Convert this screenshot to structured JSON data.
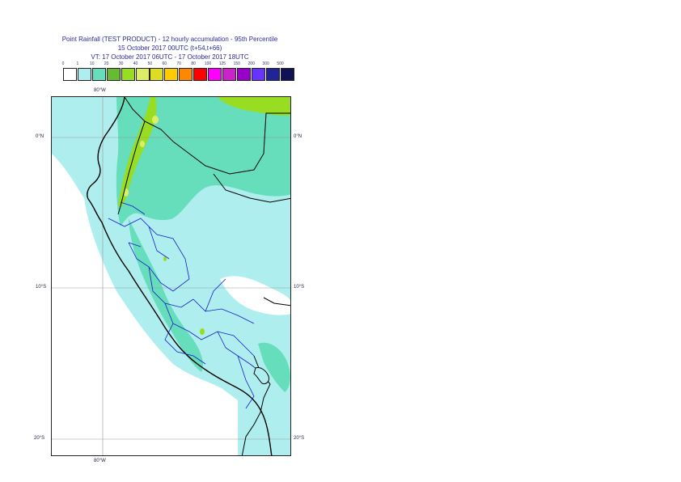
{
  "title": {
    "line1": "Point Rainfall (TEST PRODUCT) - 12 hourly accumulation - 95th Percentile",
    "line2": "15 October 2017 00UTC (t+54,t+66)",
    "line3": "VT: 17 October 2017 06UTC - 17 October 2017 18UTC"
  },
  "legend": {
    "labels": [
      "0",
      "1",
      "10",
      "20",
      "30",
      "40",
      "50",
      "60",
      "70",
      "80",
      "100",
      "125",
      "150",
      "200",
      "300",
      "500"
    ],
    "colors": [
      "#ffffff",
      "#aeeeee",
      "#66ddbb",
      "#66bb33",
      "#99dd22",
      "#ddee66",
      "#dddd22",
      "#ffcc00",
      "#ff8800",
      "#ff0000",
      "#ff00ff",
      "#cc22cc",
      "#9900cc",
      "#6633ff",
      "#222299",
      "#111155"
    ]
  },
  "map": {
    "lon_labels": {
      "top": "80°W",
      "bottom": "80°W"
    },
    "lat_labels": {
      "left": [
        "0°N",
        "10°S",
        "20°S"
      ],
      "right": [
        "0°N",
        "10°S",
        "20°S"
      ]
    },
    "colors": {
      "ocean_light": "#aeeeee",
      "ocean_white": "#ffffff",
      "moderate": "#66ddbb",
      "heavy": "#99dd22",
      "peak": "#ddee66",
      "coastline": "#000000",
      "regions": "#1a1acc",
      "grid": "#999999"
    }
  }
}
